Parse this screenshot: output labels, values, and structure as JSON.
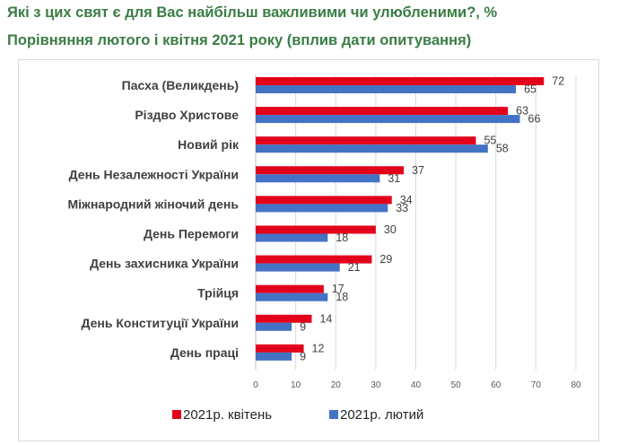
{
  "chart_data": {
    "type": "bar",
    "orientation": "horizontal",
    "title": "Які з цих свят є для Вас найбільш важливими чи  улюбленими?, %",
    "subtitle": "Порівняння лютого і квітня 2021 року  (вплив дати опитування)",
    "categories": [
      "Пасха (Великдень)",
      "Різдво Христове",
      "Новий рік",
      "День Незалежності України",
      "Міжнародний жіночий день",
      "День Перемоги",
      "День захисника України",
      "Трійця",
      "День Конституції України",
      "День праці"
    ],
    "series": [
      {
        "name": "2021р. квітень",
        "color": "#e3001b",
        "values": [
          72,
          63,
          55,
          37,
          34,
          30,
          29,
          17,
          14,
          12
        ]
      },
      {
        "name": "2021р. лютий",
        "color": "#4472c4",
        "values": [
          65,
          66,
          58,
          31,
          33,
          18,
          21,
          18,
          9,
          9
        ]
      }
    ],
    "xlim": [
      0,
      80
    ],
    "xticks": [
      0,
      10,
      20,
      30,
      40,
      50,
      60,
      70,
      80
    ],
    "gridlines": true,
    "legend_position": "bottom"
  }
}
